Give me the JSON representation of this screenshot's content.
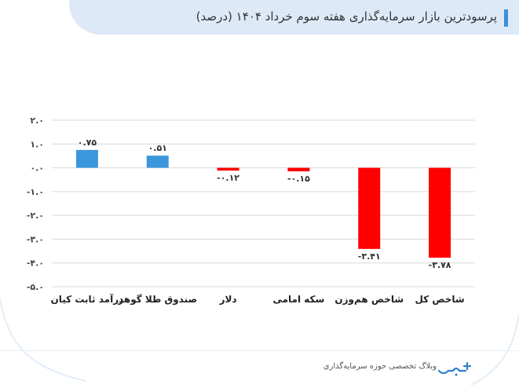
{
  "header": {
    "title": "پرسودترین بازار سرمایه‌گذاری هفته سوم خرداد ۱۴۰۴ (درصد)"
  },
  "footer": {
    "text": "وبلاگ تخصصی حوزه سرمایه‌گذاری",
    "logo_icon": "sarmaye-logo-icon"
  },
  "colors": {
    "positive": "#3b97dc",
    "negative": "#ff0000",
    "accent": "#3b8fd8",
    "header_bg": "#dde9f6"
  },
  "chart_data": {
    "type": "bar",
    "categories": [
      "درآمد ثابت کیان",
      "صندوق طلا گوهر",
      "دلار",
      "سکه امامی",
      "شاخص هم‌وزن",
      "شاخص کل"
    ],
    "values": [
      0.75,
      0.51,
      -0.12,
      -0.15,
      -3.41,
      -3.78
    ],
    "value_labels": [
      "۰.۷۵",
      "۰.۵۱",
      "-۰.۱۲",
      "-۰.۱۵",
      "-۳.۴۱",
      "-۳.۷۸"
    ],
    "y_ticks": [
      2.0,
      1.0,
      0.0,
      -1.0,
      -2.0,
      -3.0,
      -4.0,
      -5.0
    ],
    "y_tick_labels": [
      "۲.۰",
      "۱.۰",
      "۰.۰",
      "-۱.۰",
      "-۲.۰",
      "-۳.۰",
      "-۴.۰",
      "-۵.۰"
    ],
    "ylim": [
      -5,
      2
    ],
    "grid": true,
    "title": "پرسودترین بازار سرمایه‌گذاری هفته سوم خرداد ۱۴۰۴ (درصد)",
    "xlabel": "",
    "ylabel": ""
  }
}
